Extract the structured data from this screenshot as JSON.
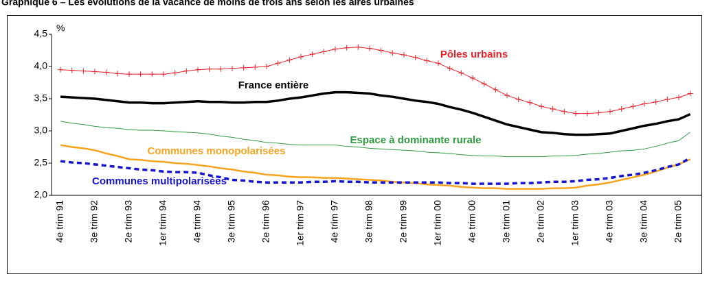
{
  "chart_data": {
    "type": "line",
    "title": "Graphique 6 – Les évolutions de la vacance de moins de trois ans selon les aires urbaines",
    "y_label": "%",
    "categories": [
      "4e trim 91",
      null,
      null,
      "3e trim 92",
      null,
      null,
      "2e trim 93",
      null,
      null,
      "1er trim 94",
      null,
      null,
      "4e trim 94",
      null,
      null,
      "3e trim 95",
      null,
      null,
      "2e trim 96",
      null,
      null,
      "1er trim 97",
      null,
      null,
      "4e trim 97",
      null,
      null,
      "3e trim 98",
      null,
      null,
      "2e trim 99",
      null,
      null,
      "1er trim 00",
      null,
      null,
      "4e trim 00",
      null,
      null,
      "3e trim 01",
      null,
      null,
      "2e trim 02",
      null,
      null,
      "1er trim 03",
      null,
      null,
      "4e trim 03",
      null,
      null,
      "3e trim 04",
      null,
      null,
      "2e trim 05",
      null
    ],
    "ylim": [
      2.0,
      4.5
    ],
    "yticks": [
      {
        "value": 2.0,
        "label": "2,0"
      },
      {
        "value": 2.5,
        "label": "2,5"
      },
      {
        "value": 3.0,
        "label": "3,0"
      },
      {
        "value": 3.5,
        "label": "3,5"
      },
      {
        "value": 4.0,
        "label": "4,0"
      },
      {
        "value": 4.5,
        "label": "4,5"
      }
    ],
    "grid": false,
    "series": [
      {
        "name": "Pôles urbains",
        "color": "#e8232a",
        "marker": "plus",
        "dashed": false,
        "values": [
          3.95,
          3.94,
          3.93,
          3.92,
          3.91,
          3.89,
          3.88,
          3.88,
          3.88,
          3.88,
          3.9,
          3.93,
          3.95,
          3.96,
          3.96,
          3.97,
          3.98,
          3.99,
          4.0,
          4.05,
          4.1,
          4.15,
          4.19,
          4.23,
          4.27,
          4.29,
          4.3,
          4.28,
          4.25,
          4.21,
          4.18,
          4.14,
          4.09,
          4.05,
          3.97,
          3.9,
          3.82,
          3.73,
          3.64,
          3.55,
          3.49,
          3.44,
          3.38,
          3.34,
          3.3,
          3.27,
          3.27,
          3.28,
          3.3,
          3.34,
          3.38,
          3.42,
          3.45,
          3.49,
          3.52,
          3.58
        ]
      },
      {
        "name": "France entière",
        "color": "#000000",
        "marker": "none",
        "dashed": false,
        "values": [
          3.53,
          3.52,
          3.51,
          3.5,
          3.48,
          3.46,
          3.44,
          3.44,
          3.43,
          3.43,
          3.44,
          3.45,
          3.46,
          3.45,
          3.45,
          3.44,
          3.44,
          3.45,
          3.45,
          3.47,
          3.5,
          3.52,
          3.55,
          3.58,
          3.6,
          3.6,
          3.59,
          3.58,
          3.55,
          3.53,
          3.5,
          3.47,
          3.45,
          3.42,
          3.37,
          3.33,
          3.28,
          3.22,
          3.16,
          3.1,
          3.06,
          3.02,
          2.98,
          2.97,
          2.95,
          2.94,
          2.94,
          2.95,
          2.96,
          3.0,
          3.04,
          3.08,
          3.11,
          3.15,
          3.18,
          3.26
        ]
      },
      {
        "name": "Espace à dominante rurale",
        "color": "#2e9a3e",
        "marker": "none",
        "dashed": false,
        "values": [
          3.15,
          3.12,
          3.1,
          3.07,
          3.05,
          3.04,
          3.02,
          3.01,
          3.01,
          3.0,
          2.99,
          2.98,
          2.97,
          2.95,
          2.92,
          2.9,
          2.87,
          2.85,
          2.82,
          2.81,
          2.79,
          2.78,
          2.78,
          2.78,
          2.78,
          2.76,
          2.75,
          2.73,
          2.72,
          2.71,
          2.7,
          2.69,
          2.67,
          2.66,
          2.65,
          2.63,
          2.62,
          2.61,
          2.61,
          2.6,
          2.6,
          2.6,
          2.6,
          2.61,
          2.61,
          2.62,
          2.64,
          2.65,
          2.67,
          2.69,
          2.7,
          2.72,
          2.76,
          2.81,
          2.85,
          2.98
        ]
      },
      {
        "name": "Communes monopolarisées",
        "color": "#f7a21b",
        "marker": "none",
        "dashed": false,
        "values": [
          2.78,
          2.75,
          2.73,
          2.7,
          2.65,
          2.61,
          2.56,
          2.55,
          2.53,
          2.52,
          2.5,
          2.49,
          2.47,
          2.45,
          2.42,
          2.4,
          2.37,
          2.35,
          2.32,
          2.31,
          2.29,
          2.28,
          2.28,
          2.27,
          2.27,
          2.26,
          2.25,
          2.24,
          2.23,
          2.21,
          2.2,
          2.19,
          2.17,
          2.16,
          2.15,
          2.13,
          2.12,
          2.11,
          2.11,
          2.1,
          2.1,
          2.1,
          2.1,
          2.11,
          2.11,
          2.12,
          2.15,
          2.17,
          2.2,
          2.24,
          2.28,
          2.32,
          2.37,
          2.43,
          2.48,
          2.56
        ]
      },
      {
        "name": "Communes multipolarisées",
        "color": "#1414d2",
        "marker": "none",
        "dashed": true,
        "values": [
          2.53,
          2.51,
          2.5,
          2.48,
          2.46,
          2.44,
          2.42,
          2.4,
          2.39,
          2.37,
          2.36,
          2.36,
          2.35,
          2.31,
          2.28,
          2.24,
          2.23,
          2.21,
          2.2,
          2.2,
          2.2,
          2.2,
          2.21,
          2.21,
          2.22,
          2.21,
          2.21,
          2.2,
          2.2,
          2.2,
          2.2,
          2.2,
          2.2,
          2.2,
          2.19,
          2.19,
          2.18,
          2.18,
          2.18,
          2.18,
          2.19,
          2.19,
          2.2,
          2.21,
          2.21,
          2.22,
          2.24,
          2.25,
          2.27,
          2.3,
          2.32,
          2.35,
          2.39,
          2.44,
          2.48,
          2.58
        ]
      }
    ]
  }
}
